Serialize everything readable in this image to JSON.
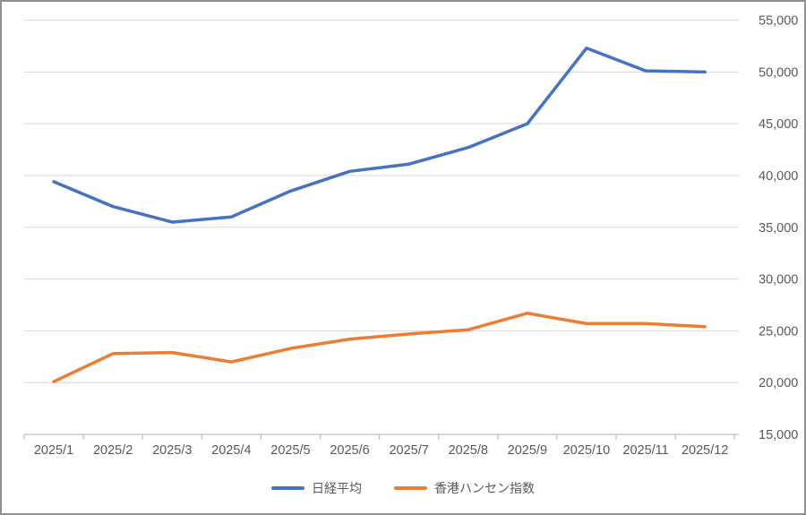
{
  "chart_data": {
    "type": "line",
    "title": "",
    "xlabel": "",
    "ylabel": "",
    "categories": [
      "2025/1",
      "2025/2",
      "2025/3",
      "2025/4",
      "2025/5",
      "2025/6",
      "2025/7",
      "2025/8",
      "2025/9",
      "2025/10",
      "2025/11",
      "2025/12"
    ],
    "series": [
      {
        "name": "日経平均",
        "color": "#4472C4",
        "values": [
          39400,
          37000,
          35500,
          36000,
          38500,
          40400,
          41100,
          42700,
          45000,
          52300,
          50100,
          50000
        ]
      },
      {
        "name": "香港ハンセン指数",
        "color": "#ED7D31",
        "values": [
          20100,
          22800,
          22900,
          22000,
          23300,
          24200,
          24700,
          25100,
          26700,
          25700,
          25700,
          25400
        ]
      }
    ],
    "ylim": [
      15000,
      55000
    ],
    "y_tick_step": 5000,
    "y_axis_side": "right",
    "y_tick_labels": [
      "15,000",
      "20,000",
      "25,000",
      "30,000",
      "35,000",
      "40,000",
      "45,000",
      "50,000",
      "55,000"
    ],
    "grid": true,
    "legend_position": "bottom"
  },
  "colors": {
    "background": "#FFFFFF",
    "gridline": "#D9D9D9",
    "axis_line": "#BFBFBF",
    "tick_label": "#595959",
    "frame_border": "#919191"
  }
}
